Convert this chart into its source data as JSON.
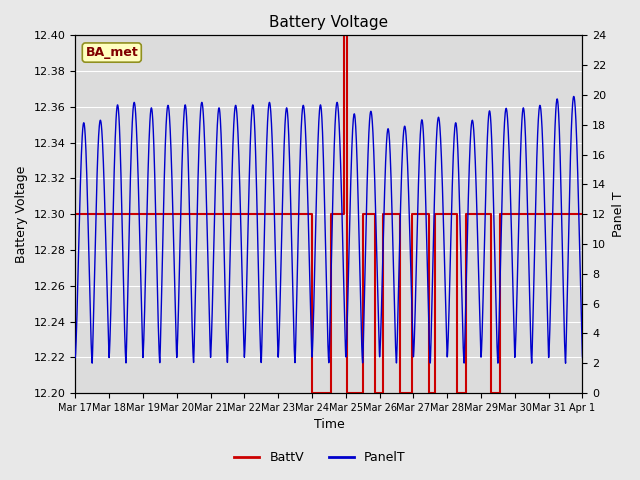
{
  "title": "Battery Voltage",
  "xlabel": "Time",
  "ylabel_left": "Battery Voltage",
  "ylabel_right": "Panel T",
  "ylim_left": [
    12.2,
    12.4
  ],
  "ylim_right": [
    0,
    24
  ],
  "yticks_left": [
    12.2,
    12.22,
    12.24,
    12.26,
    12.28,
    12.3,
    12.32,
    12.34,
    12.36,
    12.38,
    12.4
  ],
  "yticks_right": [
    0,
    2,
    4,
    6,
    8,
    10,
    12,
    14,
    16,
    18,
    20,
    22,
    24
  ],
  "background_color": "#e8e8e8",
  "plot_bg_color": "#dcdcdc",
  "grid_color": "#ffffff",
  "annotation_text": "BA_met",
  "annotation_bg": "#ffffc0",
  "annotation_border": "#909020",
  "annotation_text_color": "#800000",
  "batt_color": "#cc0000",
  "panel_color": "#0000cc",
  "legend_batt": "BattV",
  "legend_panel": "PanelT",
  "x_tick_labels": [
    "Mar 17",
    "Mar 18",
    "Mar 19",
    "Mar 20",
    "Mar 21",
    "Mar 22",
    "Mar 23",
    "Mar 24",
    "Mar 25",
    "Mar 26",
    "Mar 27",
    "Mar 28",
    "Mar 29",
    "Mar 30",
    "Mar 31",
    "Apr 1"
  ],
  "figsize": [
    6.4,
    4.8
  ],
  "dpi": 100
}
